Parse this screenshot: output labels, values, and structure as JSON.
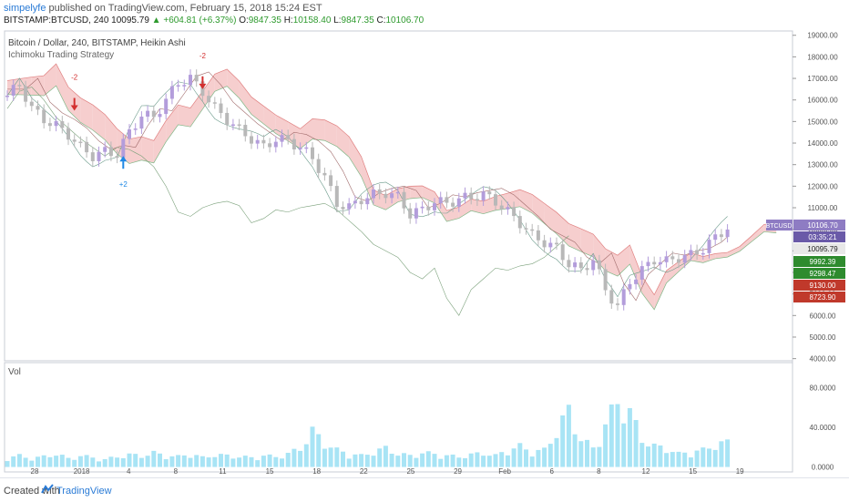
{
  "header": {
    "user": "simpelyfe",
    "published_text": "published on TradingView.com, February 15, 2018 15:24 EST",
    "symbol_line": "BITSTAMP:BTCUSD, 240  10095.79",
    "change": "▲ +604.81 (+6.37%)",
    "ohlc_o_label": "O:",
    "ohlc_o": "9847.35",
    "ohlc_h_label": "H:",
    "ohlc_h": "10158.40",
    "ohlc_l_label": "L:",
    "ohlc_l": "9847.35",
    "ohlc_c_label": "C:",
    "ohlc_c": "10106.70"
  },
  "footer": {
    "created": "Created with",
    "brand": "TradingView"
  },
  "colors": {
    "cloud_red": "#f4c6c6",
    "cloud_green": "#cde8d2",
    "candle_up": "#b39ddb",
    "candle_down": "#b8b8b8",
    "volume": "#a8e4f5",
    "price_tag": "#8e7cc3",
    "tag_green": "#2e8b2e",
    "tag_red": "#c0392b",
    "signal_red": "#d32f2f",
    "signal_blue": "#1e88e5"
  },
  "chart_data": {
    "type": "candlestick",
    "title": "Bitcoin / Dollar, 240, BITSTAMP, Heikin Ashi",
    "subtitle": "Ichimoku Trading Strategy",
    "volume_label": "Vol",
    "price_axis_ticks": [
      "19000.00",
      "18000.00",
      "17000.00",
      "16000.00",
      "15000.00",
      "14000.00",
      "13000.00",
      "12000.00",
      "11000.00",
      "10000.00",
      "9000.00",
      "8000.00",
      "7000.00",
      "6000.00",
      "5000.00",
      "4000.00"
    ],
    "ylim": [
      3900,
      19200
    ],
    "volume_ticks": [
      "80.0000",
      "40.0000",
      "0.0000"
    ],
    "volume_ylim": [
      -5,
      100
    ],
    "x_ticks": [
      "28",
      "2018",
      "4",
      "8",
      "11",
      "15",
      "18",
      "22",
      "25",
      "29",
      "Feb",
      "6",
      "8",
      "12",
      "15",
      "19"
    ],
    "price_series": [
      [
        0,
        16200
      ],
      [
        2,
        16700
      ],
      [
        4,
        15600
      ],
      [
        6,
        15100
      ],
      [
        8,
        14800
      ],
      [
        10,
        14400
      ],
      [
        12,
        13800
      ],
      [
        14,
        13400
      ],
      [
        16,
        13600
      ],
      [
        18,
        13500
      ],
      [
        20,
        14500
      ],
      [
        22,
        15300
      ],
      [
        24,
        15200
      ],
      [
        26,
        16000
      ],
      [
        28,
        16800
      ],
      [
        30,
        17000
      ],
      [
        32,
        16400
      ],
      [
        34,
        15600
      ],
      [
        36,
        15100
      ],
      [
        38,
        14600
      ],
      [
        40,
        14200
      ],
      [
        42,
        13800
      ],
      [
        44,
        14200
      ],
      [
        46,
        14100
      ],
      [
        48,
        13800
      ],
      [
        50,
        13300
      ],
      [
        52,
        12400
      ],
      [
        54,
        11200
      ],
      [
        56,
        11000
      ],
      [
        58,
        11400
      ],
      [
        60,
        11600
      ],
      [
        62,
        11700
      ],
      [
        64,
        11500
      ],
      [
        66,
        10700
      ],
      [
        68,
        10900
      ],
      [
        70,
        11300
      ],
      [
        72,
        11200
      ],
      [
        74,
        11400
      ],
      [
        76,
        11500
      ],
      [
        78,
        11600
      ],
      [
        80,
        11300
      ],
      [
        82,
        10800
      ],
      [
        84,
        10300
      ],
      [
        86,
        9700
      ],
      [
        88,
        9400
      ],
      [
        90,
        9100
      ],
      [
        92,
        8400
      ],
      [
        94,
        8100
      ],
      [
        96,
        8600
      ],
      [
        98,
        7200
      ],
      [
        100,
        6400
      ],
      [
        102,
        7600
      ],
      [
        104,
        8100
      ],
      [
        106,
        8600
      ],
      [
        108,
        8500
      ],
      [
        110,
        8700
      ],
      [
        112,
        8800
      ],
      [
        114,
        9100
      ],
      [
        116,
        9600
      ],
      [
        118,
        10100
      ]
    ],
    "last_price": {
      "label": "BTCUSD",
      "value": "10106.70",
      "time_left": "03:35:21",
      "price": "10095.79"
    },
    "price_tags": [
      {
        "value": "9992.39",
        "kind": "green"
      },
      {
        "value": "9298.47",
        "kind": "green"
      },
      {
        "value": "9130.00",
        "kind": "red"
      },
      {
        "value": "8723.90",
        "kind": "red"
      }
    ],
    "signals": [
      {
        "x": 11,
        "price": 15500,
        "text": "-2",
        "kind": "sell"
      },
      {
        "x": 32,
        "price": 16500,
        "text": "-2",
        "kind": "sell"
      },
      {
        "x": 19,
        "price": 13400,
        "text": "+2",
        "kind": "buy"
      }
    ],
    "volume_series": [
      [
        0,
        10
      ],
      [
        2,
        12
      ],
      [
        4,
        9
      ],
      [
        6,
        11
      ],
      [
        8,
        14
      ],
      [
        10,
        9
      ],
      [
        12,
        12
      ],
      [
        14,
        10
      ],
      [
        16,
        8
      ],
      [
        18,
        11
      ],
      [
        20,
        13
      ],
      [
        22,
        12
      ],
      [
        24,
        15
      ],
      [
        26,
        12
      ],
      [
        28,
        11
      ],
      [
        30,
        14
      ],
      [
        32,
        10
      ],
      [
        34,
        13
      ],
      [
        36,
        12
      ],
      [
        38,
        11
      ],
      [
        40,
        10
      ],
      [
        42,
        12
      ],
      [
        44,
        11
      ],
      [
        46,
        14
      ],
      [
        48,
        20
      ],
      [
        50,
        38
      ],
      [
        52,
        26
      ],
      [
        54,
        18
      ],
      [
        56,
        14
      ],
      [
        58,
        12
      ],
      [
        60,
        16
      ],
      [
        62,
        20
      ],
      [
        64,
        14
      ],
      [
        66,
        12
      ],
      [
        68,
        15
      ],
      [
        70,
        14
      ],
      [
        72,
        12
      ],
      [
        74,
        11
      ],
      [
        76,
        13
      ],
      [
        78,
        15
      ],
      [
        80,
        12
      ],
      [
        82,
        18
      ],
      [
        84,
        22
      ],
      [
        86,
        16
      ],
      [
        88,
        18
      ],
      [
        90,
        38
      ],
      [
        92,
        60
      ],
      [
        94,
        30
      ],
      [
        96,
        20
      ],
      [
        98,
        45
      ],
      [
        100,
        70
      ],
      [
        102,
        58
      ],
      [
        104,
        30
      ],
      [
        106,
        22
      ],
      [
        108,
        20
      ],
      [
        110,
        14
      ],
      [
        112,
        16
      ],
      [
        114,
        18
      ],
      [
        116,
        24
      ],
      [
        118,
        26
      ]
    ]
  }
}
